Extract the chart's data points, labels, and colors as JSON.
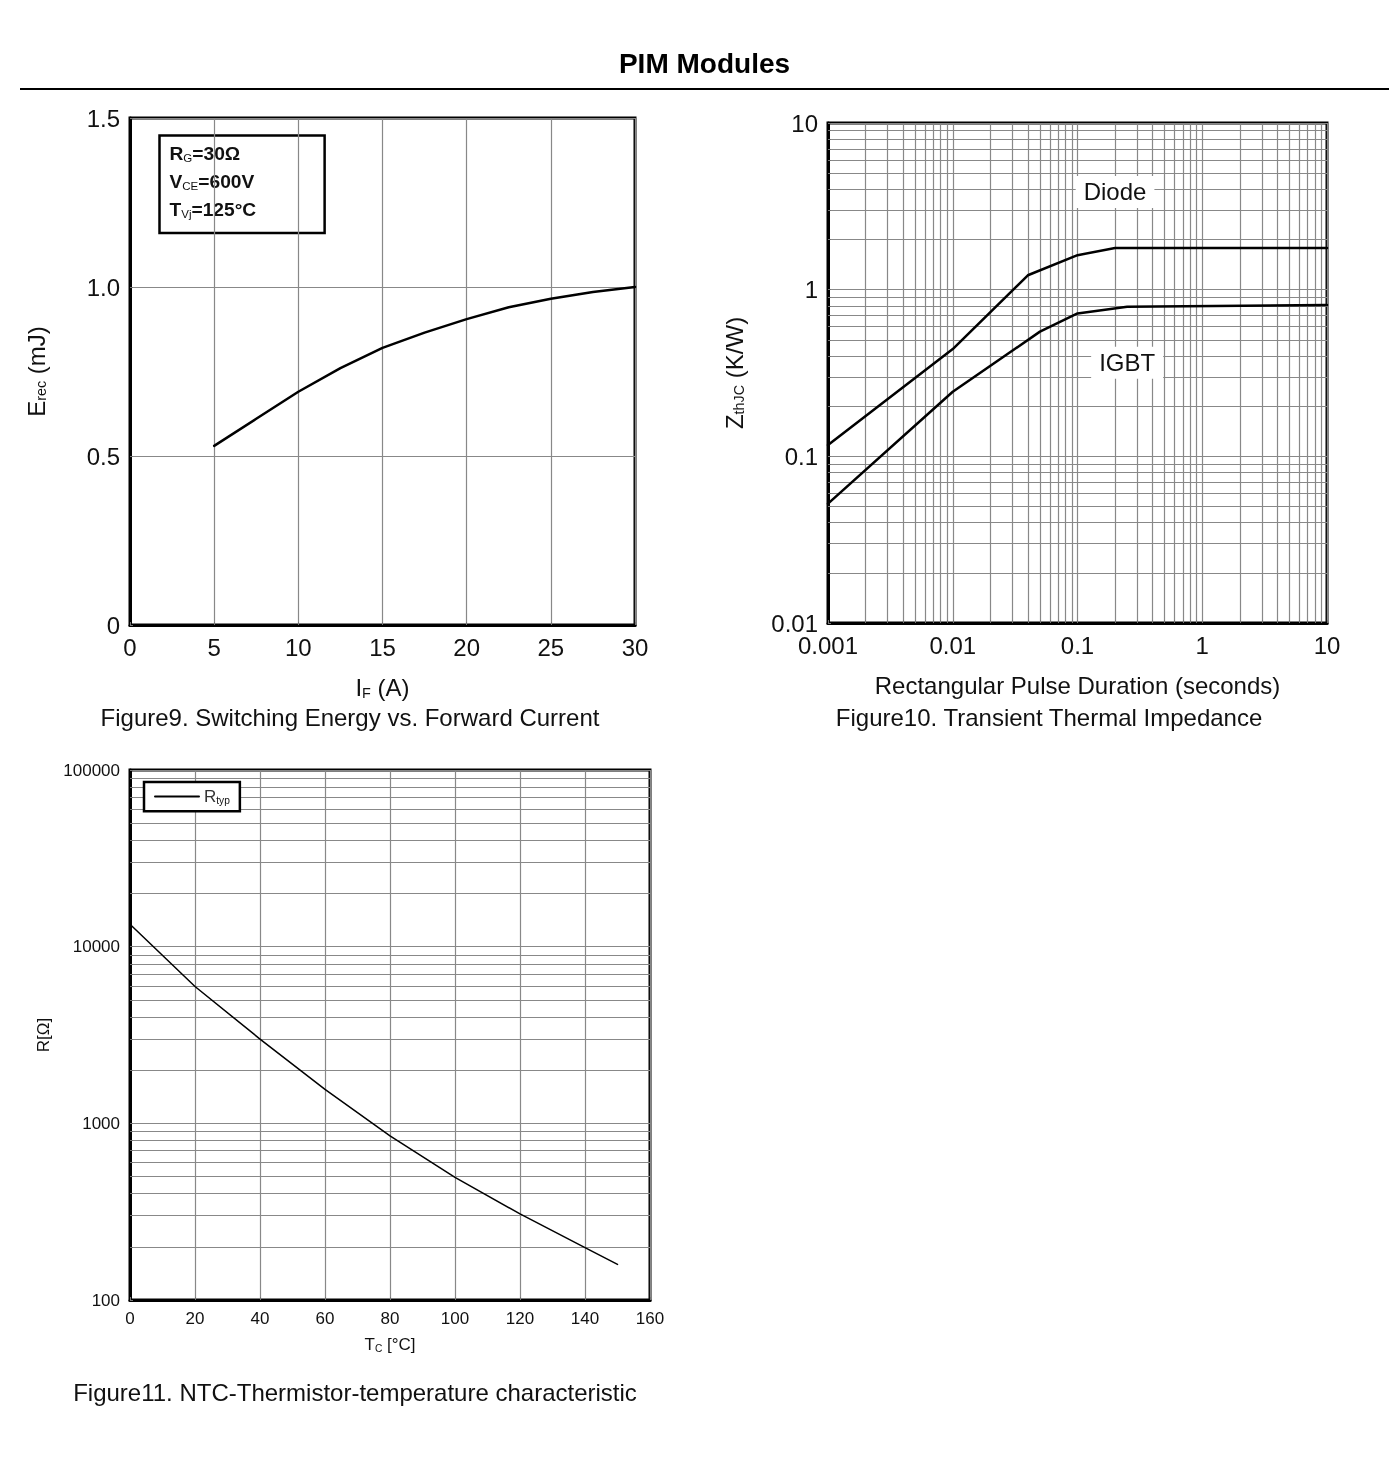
{
  "chart_data": [
    {
      "type": "line",
      "title": "PIM  Modules",
      "xlabel": "I$_{F}$ (A)",
      "ylabel": "E$_{rec}$ (mJ)",
      "annotations": [
        "R$_{G}$=30Ω",
        "V$_{CE}$=600V",
        "T$_{Vj}$=125°C",
        "Figure9. Switching Energy vs. Forward Current"
      ],
      "x": [
        5,
        7.5,
        10,
        12.5,
        15,
        17.5,
        20,
        22.5,
        25,
        27.5,
        30
      ],
      "series": [
        {
          "color": "#000000",
          "values": [
            0.53,
            0.61,
            0.69,
            0.76,
            0.82,
            0.865,
            0.905,
            0.94,
            0.965,
            0.985,
            1.0
          ]
        }
      ],
      "xlim": [
        0,
        30
      ],
      "xticks": [
        0,
        5,
        10,
        15,
        20,
        25,
        30
      ],
      "ylim": [
        0,
        1.5
      ],
      "yticks": [
        0,
        0.5,
        {
          "value": 1,
          "label": "1.0"
        },
        1.5
      ],
      "grid": true,
      "marker": "none",
      "line_style": "solid"
    },
    {
      "type": "line",
      "xlabel": "Rectangular Pulse Duration (seconds)",
      "ylabel": "Z$_{thJC}$ (K/W)",
      "annotations": [
        "Figure10. Transient Thermal Impedance"
      ],
      "series": [
        {
          "name": "Diode",
          "color": "#000000",
          "x": [
            0.001,
            0.01,
            0.04,
            0.1,
            0.2,
            10
          ],
          "values": [
            0.117,
            0.44,
            1.22,
            1.61,
            1.78,
            1.78
          ]
        },
        {
          "name": "IGBT",
          "color": "#000000",
          "x": [
            0.001,
            0.01,
            0.05,
            0.1,
            0.25,
            10
          ],
          "values": [
            0.052,
            0.244,
            0.56,
            0.72,
            0.79,
            0.81
          ]
        }
      ],
      "log": "xy",
      "xlim": [
        0.001,
        10
      ],
      "xticks": [
        0.001,
        {
          "value": 0.002,
          "label": null
        },
        {
          "value": 0.003,
          "label": null
        },
        {
          "value": 0.004,
          "label": null
        },
        {
          "value": 0.005,
          "label": null
        },
        {
          "value": 0.006,
          "label": null
        },
        {
          "value": 0.007,
          "label": null
        },
        {
          "value": 0.008,
          "label": null
        },
        {
          "value": 0.009,
          "label": null
        },
        0.01,
        {
          "value": 0.02,
          "label": null
        },
        {
          "value": 0.03,
          "label": null
        },
        {
          "value": 0.04,
          "label": null
        },
        {
          "value": 0.05,
          "label": null
        },
        {
          "value": 0.06,
          "label": null
        },
        {
          "value": 0.07,
          "label": null
        },
        {
          "value": 0.08,
          "label": null
        },
        {
          "value": 0.09,
          "label": null
        },
        0.1,
        {
          "value": 0.2,
          "label": null
        },
        {
          "value": 0.3,
          "label": null
        },
        {
          "value": 0.4,
          "label": null
        },
        {
          "value": 0.5,
          "label": null
        },
        {
          "value": 0.6,
          "label": null
        },
        {
          "value": 0.7,
          "label": null
        },
        {
          "value": 0.8,
          "label": null
        },
        {
          "value": 0.9,
          "label": null
        },
        1,
        {
          "value": 2,
          "label": null
        },
        {
          "value": 3,
          "label": null
        },
        {
          "value": 4,
          "label": null
        },
        {
          "value": 5,
          "label": null
        },
        {
          "value": 6,
          "label": null
        },
        {
          "value": 7,
          "label": null
        },
        {
          "value": 8,
          "label": null
        },
        {
          "value": 9,
          "label": null
        },
        10
      ],
      "ylim": [
        0.01,
        10
      ],
      "yticks": [
        0.01,
        {
          "value": 0.02,
          "label": null
        },
        {
          "value": 0.03,
          "label": null
        },
        {
          "value": 0.04,
          "label": null
        },
        {
          "value": 0.05,
          "label": null
        },
        {
          "value": 0.06,
          "label": null
        },
        {
          "value": 0.07,
          "label": null
        },
        {
          "value": 0.08,
          "label": null
        },
        {
          "value": 0.09,
          "label": null
        },
        0.1,
        {
          "value": 0.2,
          "label": null
        },
        {
          "value": 0.3,
          "label": null
        },
        {
          "value": 0.4,
          "label": null
        },
        {
          "value": 0.5,
          "label": null
        },
        {
          "value": 0.6,
          "label": null
        },
        {
          "value": 0.7,
          "label": null
        },
        {
          "value": 0.8,
          "label": null
        },
        {
          "value": 0.9,
          "label": null
        },
        1,
        {
          "value": 2,
          "label": null
        },
        {
          "value": 3,
          "label": null
        },
        {
          "value": 4,
          "label": null
        },
        {
          "value": 5,
          "label": null
        },
        {
          "value": 6,
          "label": null
        },
        {
          "value": 7,
          "label": null
        },
        {
          "value": 8,
          "label": null
        },
        {
          "value": 9,
          "label": null
        },
        10
      ],
      "grid": true,
      "marker": "none",
      "line_style": "solid"
    },
    {
      "type": "line",
      "xlabel": "T$_{C}$ [°C]",
      "ylabel": "R[Ω]",
      "annotations": [
        "Figure11. NTC-Thermistor-temperature characteristic"
      ],
      "x": [
        0,
        20,
        40,
        60,
        80,
        100,
        120,
        140,
        150
      ],
      "series": [
        {
          "name": "R$_{typ}$",
          "color": "#000000",
          "values": [
            13400,
            5950,
            3000,
            1556,
            850,
            494,
            307,
            198,
            159
          ]
        }
      ],
      "log": "y",
      "xlim": [
        0,
        160
      ],
      "xticks": [
        0,
        20,
        40,
        60,
        80,
        100,
        120,
        140,
        160
      ],
      "ylim": [
        100,
        100000
      ],
      "yticks": [
        100,
        {
          "value": 200,
          "label": null
        },
        {
          "value": 300,
          "label": null
        },
        {
          "value": 400,
          "label": null
        },
        {
          "value": 500,
          "label": null
        },
        {
          "value": 600,
          "label": null
        },
        {
          "value": 700,
          "label": null
        },
        {
          "value": 800,
          "label": null
        },
        {
          "value": 900,
          "label": null
        },
        1000,
        {
          "value": 2000,
          "label": null
        },
        {
          "value": 3000,
          "label": null
        },
        {
          "value": 4000,
          "label": null
        },
        {
          "value": 5000,
          "label": null
        },
        {
          "value": 6000,
          "label": null
        },
        {
          "value": 7000,
          "label": null
        },
        {
          "value": 8000,
          "label": null
        },
        {
          "value": 9000,
          "label": null
        },
        10000,
        {
          "value": 20000,
          "label": null
        },
        {
          "value": 30000,
          "label": null
        },
        {
          "value": 40000,
          "label": null
        },
        {
          "value": 50000,
          "label": null
        },
        {
          "value": 60000,
          "label": null
        },
        {
          "value": 70000,
          "label": null
        },
        {
          "value": 80000,
          "label": null
        },
        {
          "value": 90000,
          "label": null
        },
        100000
      ],
      "grid": true,
      "legend": "top left",
      "marker": "none",
      "line_style": "solid"
    }
  ]
}
